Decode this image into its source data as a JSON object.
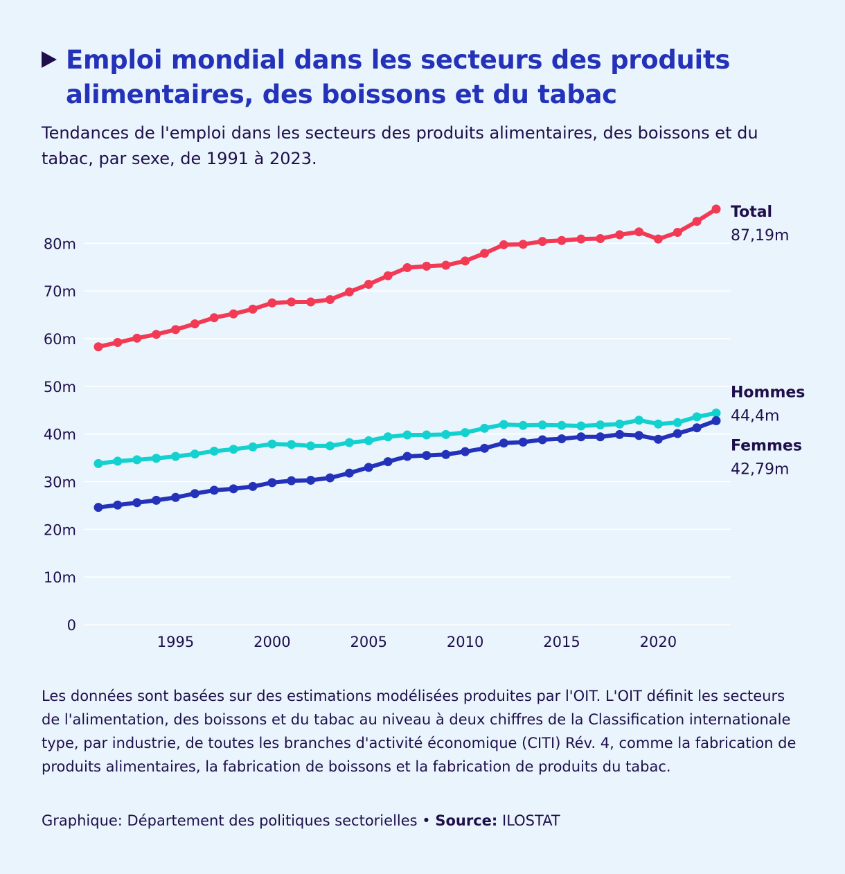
{
  "header": {
    "title": "Emploi mondial dans les secteurs des produits alimentaires, des boissons et du tabac",
    "subtitle": "Tendances de l'emploi dans les secteurs des produits alimentaires, des boissons et du tabac, par sexe, de 1991 à 2023."
  },
  "footer": {
    "note": "Les données sont basées sur des estimations modélisées produites par l'OIT. L'OIT définit les secteurs de l'alimentation, des boissons et du tabac au niveau à deux chiffres de la Classification internationale type, par industrie, de toutes les branches d'activité économique (CITI) Rév. 4, comme la fabrication de produits alimentaires, la fabrication de boissons et la fabrication de produits du tabac.",
    "credit_prefix": "Graphique: Département des politiques sectorielles •",
    "source_label": "Source:",
    "source_value": "ILOSTAT"
  },
  "colors": {
    "total": "#f23a55",
    "hommes": "#13d1cf",
    "femmes": "#2332b8",
    "title": "#2332b8",
    "text": "#1e0f4a",
    "background": "#eaf4fd",
    "grid": "#ffffff"
  },
  "chart_data": {
    "type": "line",
    "title": "Emploi mondial dans les secteurs des produits alimentaires, des boissons et du tabac",
    "xlabel": "",
    "ylabel": "",
    "xlim": [
      1991,
      2023
    ],
    "ylim": [
      0,
      90
    ],
    "grid": true,
    "x_ticks": [
      1995,
      2000,
      2005,
      2010,
      2015,
      2020
    ],
    "y_ticks": [
      0,
      10,
      20,
      30,
      40,
      50,
      60,
      70,
      80
    ],
    "y_tick_labels": [
      "0",
      "10m",
      "20m",
      "30m",
      "40m",
      "50m",
      "60m",
      "70m",
      "80m"
    ],
    "x": [
      1991,
      1992,
      1993,
      1994,
      1995,
      1996,
      1997,
      1998,
      1999,
      2000,
      2001,
      2002,
      2003,
      2004,
      2005,
      2006,
      2007,
      2008,
      2009,
      2010,
      2011,
      2012,
      2013,
      2014,
      2015,
      2016,
      2017,
      2018,
      2019,
      2020,
      2021,
      2022,
      2023
    ],
    "series": [
      {
        "name": "Total",
        "end_label": "87,19m",
        "color_key": "total",
        "values": [
          58.3,
          59.2,
          60.1,
          60.9,
          61.9,
          63.1,
          64.4,
          65.2,
          66.2,
          67.5,
          67.7,
          67.7,
          68.2,
          69.8,
          71.4,
          73.2,
          74.9,
          75.2,
          75.4,
          76.3,
          77.9,
          79.7,
          79.8,
          80.4,
          80.6,
          80.9,
          81.0,
          81.8,
          82.4,
          80.9,
          82.3,
          84.6,
          87.19
        ]
      },
      {
        "name": "Hommes",
        "end_label": "44,4m",
        "color_key": "hommes",
        "values": [
          33.8,
          34.3,
          34.6,
          34.9,
          35.3,
          35.8,
          36.4,
          36.8,
          37.3,
          37.9,
          37.8,
          37.5,
          37.5,
          38.2,
          38.6,
          39.4,
          39.8,
          39.8,
          39.9,
          40.3,
          41.2,
          42.0,
          41.8,
          41.9,
          41.8,
          41.7,
          41.9,
          42.1,
          42.9,
          42.1,
          42.4,
          43.6,
          44.4
        ]
      },
      {
        "name": "Femmes",
        "end_label": "42,79m",
        "color_key": "femmes",
        "values": [
          24.6,
          25.1,
          25.6,
          26.1,
          26.7,
          27.5,
          28.2,
          28.5,
          29.0,
          29.8,
          30.2,
          30.3,
          30.8,
          31.8,
          33.0,
          34.2,
          35.3,
          35.5,
          35.7,
          36.3,
          37.0,
          38.1,
          38.3,
          38.8,
          39.0,
          39.4,
          39.4,
          39.9,
          39.7,
          38.9,
          40.1,
          41.3,
          42.79
        ]
      }
    ]
  }
}
